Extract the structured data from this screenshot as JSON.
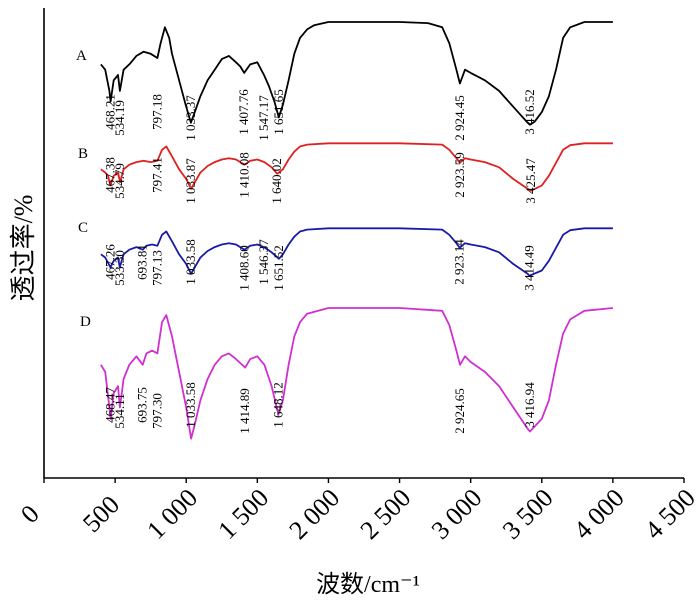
{
  "chart_data": {
    "type": "line",
    "xlabel": "波数/cm⁻¹",
    "ylabel": "透过率/%",
    "xlim": [
      0,
      4500
    ],
    "x_ticks": [
      {
        "value": 0,
        "label": "0"
      },
      {
        "value": 500,
        "label": "500"
      },
      {
        "value": 1000,
        "label": "1 000"
      },
      {
        "value": 1500,
        "label": "1 500"
      },
      {
        "value": 2000,
        "label": "2 000"
      },
      {
        "value": 2500,
        "label": "2 500"
      },
      {
        "value": 3000,
        "label": "3 000"
      },
      {
        "value": 3500,
        "label": "3 500"
      },
      {
        "value": 4000,
        "label": "4 000"
      },
      {
        "value": 4500,
        "label": "4 500"
      }
    ],
    "grid": false,
    "y_ticks_shown": false,
    "series": [
      {
        "name": "A",
        "color": "#000000",
        "points": [
          [
            400,
            0.6
          ],
          [
            430,
            0.55
          ],
          [
            460,
            0.35
          ],
          [
            468,
            0.25
          ],
          [
            490,
            0.45
          ],
          [
            520,
            0.5
          ],
          [
            534,
            0.35
          ],
          [
            560,
            0.55
          ],
          [
            600,
            0.6
          ],
          [
            650,
            0.68
          ],
          [
            700,
            0.72
          ],
          [
            750,
            0.7
          ],
          [
            797,
            0.66
          ],
          [
            820,
            0.8
          ],
          [
            850,
            0.95
          ],
          [
            880,
            0.85
          ],
          [
            900,
            0.7
          ],
          [
            950,
            0.45
          ],
          [
            1000,
            0.2
          ],
          [
            1033,
            0.05
          ],
          [
            1060,
            0.15
          ],
          [
            1100,
            0.3
          ],
          [
            1150,
            0.45
          ],
          [
            1200,
            0.55
          ],
          [
            1250,
            0.65
          ],
          [
            1300,
            0.68
          ],
          [
            1350,
            0.62
          ],
          [
            1380,
            0.58
          ],
          [
            1408,
            0.52
          ],
          [
            1450,
            0.6
          ],
          [
            1500,
            0.62
          ],
          [
            1547,
            0.5
          ],
          [
            1580,
            0.4
          ],
          [
            1620,
            0.25
          ],
          [
            1651,
            0.1
          ],
          [
            1680,
            0.22
          ],
          [
            1720,
            0.45
          ],
          [
            1760,
            0.7
          ],
          [
            1800,
            0.85
          ],
          [
            1850,
            0.93
          ],
          [
            1900,
            0.97
          ],
          [
            2000,
            1.0
          ],
          [
            2200,
            1.0
          ],
          [
            2500,
            1.0
          ],
          [
            2700,
            0.99
          ],
          [
            2800,
            0.95
          ],
          [
            2850,
            0.8
          ],
          [
            2900,
            0.55
          ],
          [
            2924,
            0.42
          ],
          [
            2960,
            0.55
          ],
          [
            3000,
            0.52
          ],
          [
            3100,
            0.45
          ],
          [
            3200,
            0.35
          ],
          [
            3300,
            0.2
          ],
          [
            3400,
            0.05
          ],
          [
            3417,
            0.03
          ],
          [
            3450,
            0.06
          ],
          [
            3500,
            0.15
          ],
          [
            3550,
            0.3
          ],
          [
            3600,
            0.55
          ],
          [
            3650,
            0.85
          ],
          [
            3700,
            0.95
          ],
          [
            3800,
            1.0
          ],
          [
            4000,
            1.0
          ]
        ],
        "labels": [
          {
            "x": 468.21,
            "text": "468.21"
          },
          {
            "x": 534.19,
            "text": "534.19"
          },
          {
            "x": 797.18,
            "text": "797.18"
          },
          {
            "x": 1033.37,
            "text": "1 033.37"
          },
          {
            "x": 1407.76,
            "text": "1 407.76"
          },
          {
            "x": 1547.17,
            "text": "1 547.17"
          },
          {
            "x": 1651.65,
            "text": "1 651.65"
          },
          {
            "x": 2924.45,
            "text": "2 924.45"
          },
          {
            "x": 3416.52,
            "text": "3 416.52"
          }
        ]
      },
      {
        "name": "B",
        "color": "#e02020",
        "points": [
          [
            400,
            0.55
          ],
          [
            430,
            0.5
          ],
          [
            450,
            0.45
          ],
          [
            467,
            0.3
          ],
          [
            490,
            0.45
          ],
          [
            520,
            0.5
          ],
          [
            535,
            0.35
          ],
          [
            560,
            0.55
          ],
          [
            600,
            0.62
          ],
          [
            650,
            0.66
          ],
          [
            700,
            0.68
          ],
          [
            750,
            0.66
          ],
          [
            797,
            0.68
          ],
          [
            830,
            0.85
          ],
          [
            860,
            0.9
          ],
          [
            900,
            0.75
          ],
          [
            950,
            0.55
          ],
          [
            1000,
            0.4
          ],
          [
            1034,
            0.25
          ],
          [
            1060,
            0.35
          ],
          [
            1100,
            0.5
          ],
          [
            1150,
            0.6
          ],
          [
            1200,
            0.66
          ],
          [
            1250,
            0.7
          ],
          [
            1300,
            0.72
          ],
          [
            1350,
            0.7
          ],
          [
            1410,
            0.62
          ],
          [
            1450,
            0.68
          ],
          [
            1500,
            0.7
          ],
          [
            1550,
            0.66
          ],
          [
            1600,
            0.58
          ],
          [
            1640,
            0.48
          ],
          [
            1680,
            0.55
          ],
          [
            1720,
            0.7
          ],
          [
            1760,
            0.82
          ],
          [
            1800,
            0.9
          ],
          [
            1850,
            0.93
          ],
          [
            2000,
            0.95
          ],
          [
            2500,
            0.95
          ],
          [
            2800,
            0.93
          ],
          [
            2850,
            0.85
          ],
          [
            2900,
            0.72
          ],
          [
            2924,
            0.65
          ],
          [
            2960,
            0.72
          ],
          [
            3000,
            0.7
          ],
          [
            3100,
            0.66
          ],
          [
            3200,
            0.58
          ],
          [
            3300,
            0.4
          ],
          [
            3400,
            0.25
          ],
          [
            3425,
            0.22
          ],
          [
            3500,
            0.3
          ],
          [
            3550,
            0.45
          ],
          [
            3600,
            0.65
          ],
          [
            3650,
            0.85
          ],
          [
            3700,
            0.92
          ],
          [
            3800,
            0.95
          ],
          [
            4000,
            0.95
          ]
        ],
        "labels": [
          {
            "x": 467.38,
            "text": "467.38"
          },
          {
            "x": 534.79,
            "text": "534.79"
          },
          {
            "x": 797.41,
            "text": "797.41"
          },
          {
            "x": 1033.87,
            "text": "1 033.87"
          },
          {
            "x": 1410.08,
            "text": "1 410.08"
          },
          {
            "x": 1640.02,
            "text": "1 640.02"
          },
          {
            "x": 2923.59,
            "text": "2 923.59"
          },
          {
            "x": 3425.47,
            "text": "3 425.47"
          }
        ]
      },
      {
        "name": "C",
        "color": "#1a1aa8",
        "points": [
          [
            400,
            0.55
          ],
          [
            430,
            0.5
          ],
          [
            467,
            0.35
          ],
          [
            490,
            0.45
          ],
          [
            520,
            0.5
          ],
          [
            533,
            0.35
          ],
          [
            560,
            0.55
          ],
          [
            600,
            0.62
          ],
          [
            650,
            0.66
          ],
          [
            694,
            0.62
          ],
          [
            720,
            0.68
          ],
          [
            760,
            0.7
          ],
          [
            797,
            0.68
          ],
          [
            830,
            0.85
          ],
          [
            860,
            0.9
          ],
          [
            900,
            0.75
          ],
          [
            950,
            0.55
          ],
          [
            1000,
            0.4
          ],
          [
            1034,
            0.25
          ],
          [
            1060,
            0.35
          ],
          [
            1100,
            0.5
          ],
          [
            1150,
            0.6
          ],
          [
            1200,
            0.66
          ],
          [
            1250,
            0.7
          ],
          [
            1300,
            0.72
          ],
          [
            1350,
            0.7
          ],
          [
            1409,
            0.62
          ],
          [
            1450,
            0.68
          ],
          [
            1500,
            0.7
          ],
          [
            1546,
            0.66
          ],
          [
            1600,
            0.58
          ],
          [
            1652,
            0.48
          ],
          [
            1680,
            0.55
          ],
          [
            1720,
            0.7
          ],
          [
            1760,
            0.82
          ],
          [
            1800,
            0.9
          ],
          [
            1850,
            0.93
          ],
          [
            2000,
            0.95
          ],
          [
            2500,
            0.95
          ],
          [
            2800,
            0.93
          ],
          [
            2850,
            0.85
          ],
          [
            2900,
            0.72
          ],
          [
            2923,
            0.65
          ],
          [
            2960,
            0.72
          ],
          [
            3000,
            0.7
          ],
          [
            3100,
            0.66
          ],
          [
            3200,
            0.58
          ],
          [
            3300,
            0.4
          ],
          [
            3400,
            0.25
          ],
          [
            3414,
            0.22
          ],
          [
            3500,
            0.3
          ],
          [
            3550,
            0.45
          ],
          [
            3600,
            0.65
          ],
          [
            3650,
            0.85
          ],
          [
            3700,
            0.92
          ],
          [
            3800,
            0.95
          ],
          [
            4000,
            0.95
          ]
        ],
        "labels": [
          {
            "x": 467.26,
            "text": "467.26"
          },
          {
            "x": 533.3,
            "text": "533.30"
          },
          {
            "x": 693.81,
            "text": "693.81"
          },
          {
            "x": 797.13,
            "text": "797.13"
          },
          {
            "x": 1033.58,
            "text": "1 033.58"
          },
          {
            "x": 1408.6,
            "text": "1 408.60"
          },
          {
            "x": 1546.37,
            "text": "1 546.37"
          },
          {
            "x": 1651.52,
            "text": "1 651.52"
          },
          {
            "x": 2923.14,
            "text": "2 923.14"
          },
          {
            "x": 3414.49,
            "text": "3 414.49"
          }
        ]
      },
      {
        "name": "D",
        "color": "#d030d0",
        "points": [
          [
            400,
            0.6
          ],
          [
            430,
            0.55
          ],
          [
            460,
            0.3
          ],
          [
            468,
            0.22
          ],
          [
            490,
            0.4
          ],
          [
            520,
            0.45
          ],
          [
            534,
            0.3
          ],
          [
            560,
            0.5
          ],
          [
            600,
            0.6
          ],
          [
            650,
            0.66
          ],
          [
            694,
            0.6
          ],
          [
            720,
            0.68
          ],
          [
            760,
            0.7
          ],
          [
            797,
            0.68
          ],
          [
            830,
            0.9
          ],
          [
            860,
            0.95
          ],
          [
            900,
            0.8
          ],
          [
            950,
            0.55
          ],
          [
            1000,
            0.3
          ],
          [
            1034,
            0.08
          ],
          [
            1060,
            0.18
          ],
          [
            1100,
            0.35
          ],
          [
            1150,
            0.5
          ],
          [
            1200,
            0.6
          ],
          [
            1250,
            0.66
          ],
          [
            1300,
            0.68
          ],
          [
            1350,
            0.64
          ],
          [
            1415,
            0.58
          ],
          [
            1450,
            0.64
          ],
          [
            1500,
            0.66
          ],
          [
            1550,
            0.6
          ],
          [
            1600,
            0.45
          ],
          [
            1648,
            0.25
          ],
          [
            1680,
            0.35
          ],
          [
            1720,
            0.6
          ],
          [
            1760,
            0.8
          ],
          [
            1800,
            0.9
          ],
          [
            1850,
            0.96
          ],
          [
            2000,
            1.0
          ],
          [
            2500,
            1.0
          ],
          [
            2800,
            0.98
          ],
          [
            2850,
            0.88
          ],
          [
            2900,
            0.7
          ],
          [
            2925,
            0.6
          ],
          [
            2960,
            0.66
          ],
          [
            3000,
            0.62
          ],
          [
            3100,
            0.55
          ],
          [
            3200,
            0.45
          ],
          [
            3300,
            0.3
          ],
          [
            3400,
            0.15
          ],
          [
            3417,
            0.13
          ],
          [
            3500,
            0.22
          ],
          [
            3550,
            0.35
          ],
          [
            3600,
            0.6
          ],
          [
            3650,
            0.82
          ],
          [
            3700,
            0.92
          ],
          [
            3800,
            0.98
          ],
          [
            4000,
            1.0
          ]
        ],
        "labels": [
          {
            "x": 468.47,
            "text": "468.47"
          },
          {
            "x": 534.11,
            "text": "534.11"
          },
          {
            "x": 693.75,
            "text": "693.75"
          },
          {
            "x": 797.3,
            "text": "797.30"
          },
          {
            "x": 1033.58,
            "text": "1 033.58"
          },
          {
            "x": 1414.89,
            "text": "1 414.89"
          },
          {
            "x": 1648.12,
            "text": "1 648.12"
          },
          {
            "x": 2924.65,
            "text": "2 924.65"
          },
          {
            "x": 3416.94,
            "text": "3 416.94"
          }
        ]
      }
    ]
  }
}
